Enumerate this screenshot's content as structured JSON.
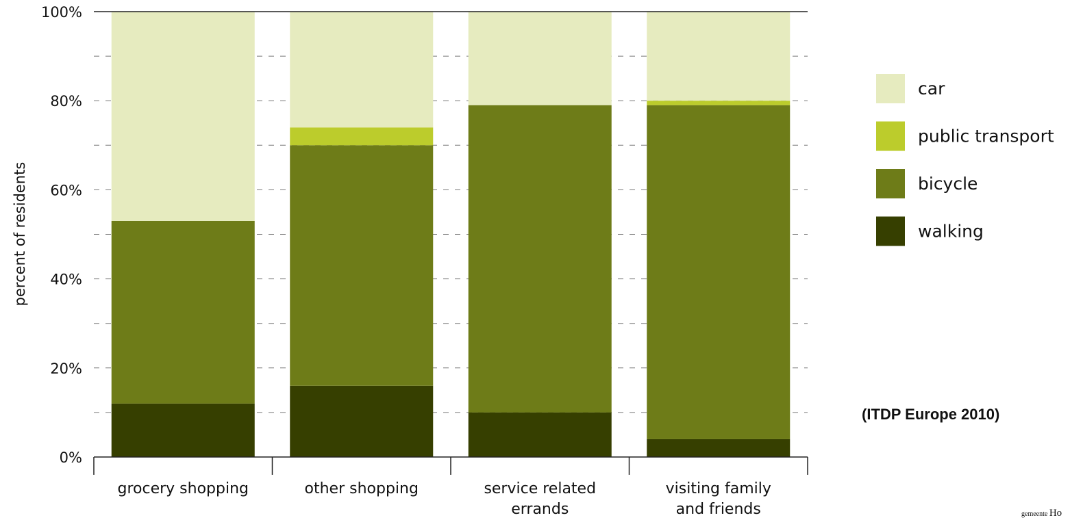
{
  "chart_data": {
    "type": "bar",
    "stacked": true,
    "categories": [
      [
        "grocery shopping"
      ],
      [
        "other shopping"
      ],
      [
        "service related",
        "errands"
      ],
      [
        "visiting family",
        "and friends"
      ]
    ],
    "series": [
      {
        "name": "walking",
        "color": "#363f00",
        "values": [
          12,
          16,
          10,
          4
        ]
      },
      {
        "name": "bicycle",
        "color": "#6e7c18",
        "values": [
          41,
          54,
          69,
          75
        ]
      },
      {
        "name": "public transport",
        "color": "#bccc2c",
        "values": [
          0,
          4,
          0,
          1
        ]
      },
      {
        "name": "car",
        "color": "#e6ebbf",
        "values": [
          47,
          26,
          21,
          20
        ]
      }
    ],
    "legend_order": [
      "car",
      "public transport",
      "bicycle",
      "walking"
    ],
    "ylabel": "percent of residents",
    "ylim": [
      0,
      100
    ],
    "yticks": [
      "0%",
      "20%",
      "40%",
      "60%",
      "80%",
      "100%"
    ],
    "grid": "dashed horizontal every 10%",
    "legend_position": "right"
  },
  "source_note": "(ITDP Europe 2010)",
  "logo": {
    "small": "gemeente",
    "large": "Ho"
  }
}
